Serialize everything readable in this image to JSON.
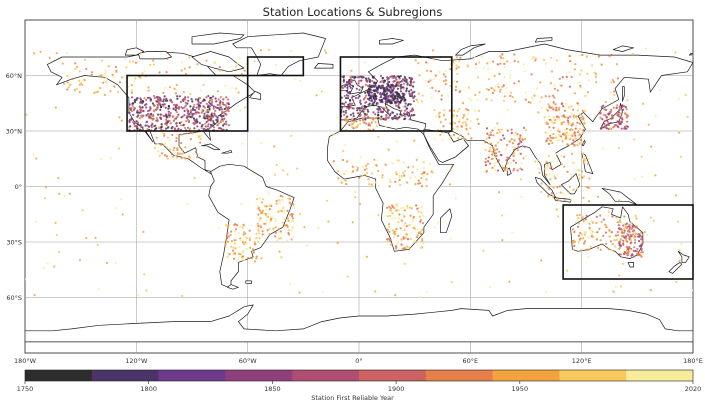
{
  "title": "Station Locations & Subregions",
  "map": {
    "projection": "equirectangular",
    "lon_range": [
      -180,
      180
    ],
    "lat_range": [
      -90,
      90
    ],
    "lat_ticks": [
      {
        "lat": 60,
        "label": "60°N"
      },
      {
        "lat": 30,
        "label": "30°N"
      },
      {
        "lat": 0,
        "label": "0°"
      },
      {
        "lat": -30,
        "label": "30°S"
      },
      {
        "lat": -60,
        "label": "60°S"
      }
    ],
    "lon_ticks": [
      {
        "lon": -180,
        "label": "180°W"
      },
      {
        "lon": -120,
        "label": "120°W"
      },
      {
        "lon": -60,
        "label": "60°W"
      },
      {
        "lon": 0,
        "label": "0°"
      },
      {
        "lon": 60,
        "label": "60°E"
      },
      {
        "lon": 120,
        "label": "120°E"
      },
      {
        "lon": 180,
        "label": "180°E"
      }
    ],
    "grid": true,
    "subregions": [
      {
        "name": "contiguous-us",
        "lon": [
          -125,
          -60
        ],
        "lat": [
          30,
          60
        ]
      },
      {
        "name": "greenland-coast",
        "lon": [
          -60,
          -30
        ],
        "lat": [
          60,
          70
        ]
      },
      {
        "name": "europe",
        "lon": [
          -10,
          50
        ],
        "lat": [
          30,
          70
        ]
      },
      {
        "name": "australia-nz",
        "lon": [
          110,
          180
        ],
        "lat": [
          -50,
          -10
        ]
      }
    ]
  },
  "colorbar": {
    "label": "Station First Reliable Year",
    "range": [
      1750,
      2020
    ],
    "ticks": [
      "1750",
      "1800",
      "1850",
      "1900",
      "1950",
      "2020"
    ],
    "colors": [
      "#2d2d2d",
      "#4a3468",
      "#6e3a8a",
      "#8e407e",
      "#b14c72",
      "#cc6262",
      "#e67f4a",
      "#f4a23d",
      "#f7c85a",
      "#f7ec9a"
    ]
  }
}
